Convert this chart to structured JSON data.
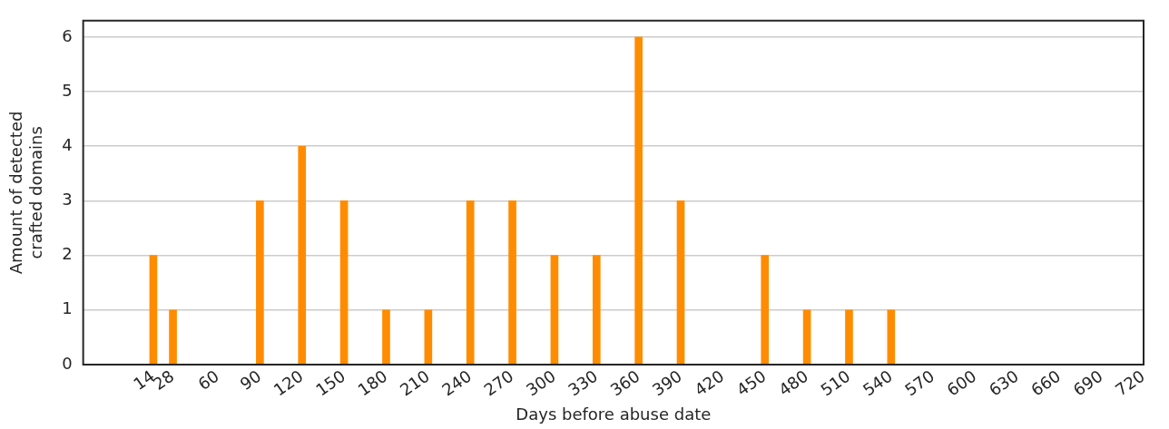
{
  "chart_data": {
    "type": "bar",
    "xlabel": "Days before abuse date",
    "ylabel": "Amount of detected crafted domains",
    "x": [
      14,
      28,
      90,
      120,
      150,
      180,
      210,
      240,
      270,
      300,
      330,
      360,
      390,
      450,
      480,
      510,
      540
    ],
    "values": [
      2,
      1,
      3,
      4,
      3,
      1,
      1,
      3,
      3,
      2,
      2,
      6,
      3,
      2,
      1,
      1,
      1
    ],
    "color": "#ff8c00",
    "xlim": [
      -36,
      720
    ],
    "xticks": [
      14,
      28,
      60,
      90,
      120,
      150,
      180,
      210,
      240,
      270,
      300,
      330,
      360,
      390,
      420,
      450,
      480,
      510,
      540,
      570,
      600,
      630,
      660,
      690,
      720
    ],
    "ylim": [
      0,
      6.3
    ],
    "yticks": [
      0,
      1,
      2,
      3,
      4,
      5,
      6
    ],
    "grid": "y",
    "legend": false
  }
}
